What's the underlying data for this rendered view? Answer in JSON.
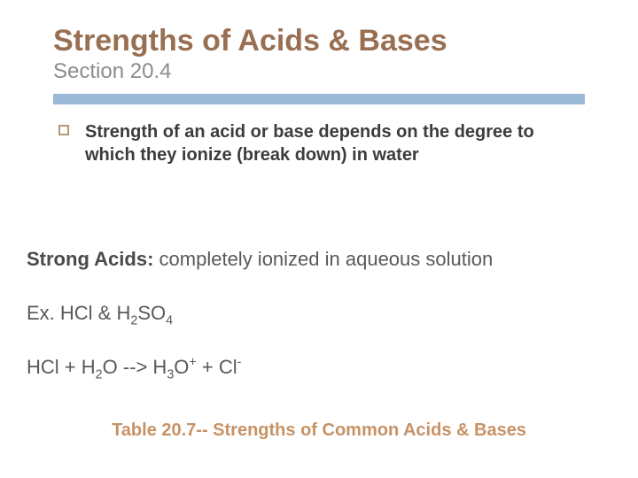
{
  "colors": {
    "title": "#996f52",
    "subtitle": "#8c8c8c",
    "rule": "#9bb9d7",
    "bullet_border": "#b89678",
    "footer": "#c79265",
    "body_text": "#595959"
  },
  "title": "Strengths of Acids & Bases",
  "subtitle": "Section 20.4",
  "bullet": "Strength of an acid or base depends on the degree to which they ionize (break down) in water",
  "body": {
    "strong_label": "Strong Acids:",
    "strong_def": "  completely ionized in aqueous solution",
    "example_prefix": "Ex.  HCl & H",
    "example_sub1": "2",
    "example_mid": "SO",
    "example_sub2": "4",
    "eqn_p1": "HCl + H",
    "eqn_s1": "2",
    "eqn_p2": "O -->  H",
    "eqn_s2": "3",
    "eqn_p3": "O",
    "eqn_sup1": "+",
    "eqn_p4": " + Cl",
    "eqn_sup2": "-"
  },
  "footer": "Table 20.7-- Strengths of Common Acids & Bases"
}
